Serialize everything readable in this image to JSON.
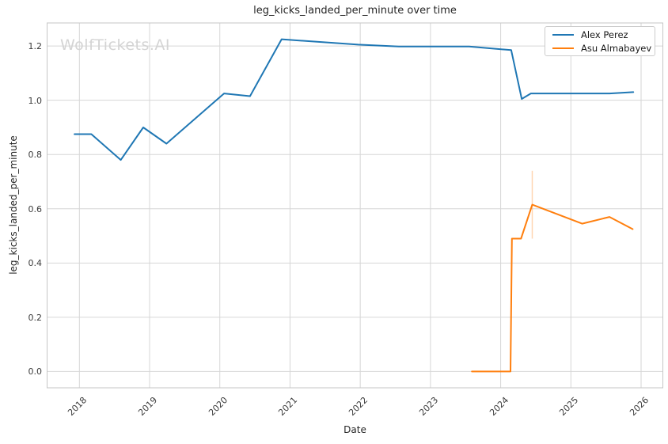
{
  "watermark": {
    "text": "WolfTickets.AI",
    "color": "#d4d4d4"
  },
  "chart_data": {
    "type": "line",
    "title": "leg_kicks_landed_per_minute over time",
    "xlabel": "Date",
    "ylabel": "leg_kicks_landed_per_minute",
    "xlim": [
      2017.54,
      2026.31
    ],
    "ylim": [
      -0.06,
      1.285
    ],
    "xticks": [
      2018,
      2019,
      2020,
      2021,
      2022,
      2023,
      2024,
      2025,
      2026
    ],
    "yticks": [
      0.0,
      0.2,
      0.4,
      0.6,
      0.8,
      1.0,
      1.2
    ],
    "grid": true,
    "legend_position": "upper right",
    "series": [
      {
        "name": "Alex Perez",
        "color": "#1f77b4",
        "points": [
          [
            2017.93,
            0.875
          ],
          [
            2018.17,
            0.875
          ],
          [
            2018.59,
            0.78
          ],
          [
            2018.91,
            0.9
          ],
          [
            2019.24,
            0.84
          ],
          [
            2020.06,
            1.025
          ],
          [
            2020.43,
            1.015
          ],
          [
            2020.88,
            1.225
          ],
          [
            2021.97,
            1.205
          ],
          [
            2022.55,
            1.198
          ],
          [
            2023.55,
            1.198
          ],
          [
            2024.15,
            1.185
          ],
          [
            2024.3,
            1.005
          ],
          [
            2024.43,
            1.025
          ],
          [
            2025.55,
            1.025
          ],
          [
            2025.89,
            1.03
          ]
        ]
      },
      {
        "name": "Asu Almabayev",
        "color": "#ff7f0e",
        "points": [
          [
            2023.59,
            0.0
          ],
          [
            2024.14,
            0.0
          ],
          [
            2024.16,
            0.49
          ],
          [
            2024.29,
            0.49
          ],
          [
            2024.45,
            0.615
          ],
          [
            2025.16,
            0.545
          ],
          [
            2025.55,
            0.57
          ],
          [
            2025.88,
            0.525
          ]
        ]
      }
    ],
    "annotations": [
      {
        "type": "error-bar",
        "x": 2024.45,
        "y_low": 0.49,
        "y_high": 0.74,
        "color": "rgba(255,127,14,0.32)"
      }
    ]
  },
  "style": {
    "grid_color": "#d6d6d6",
    "spine_color": "#c6c6c6",
    "line_width": 2
  }
}
